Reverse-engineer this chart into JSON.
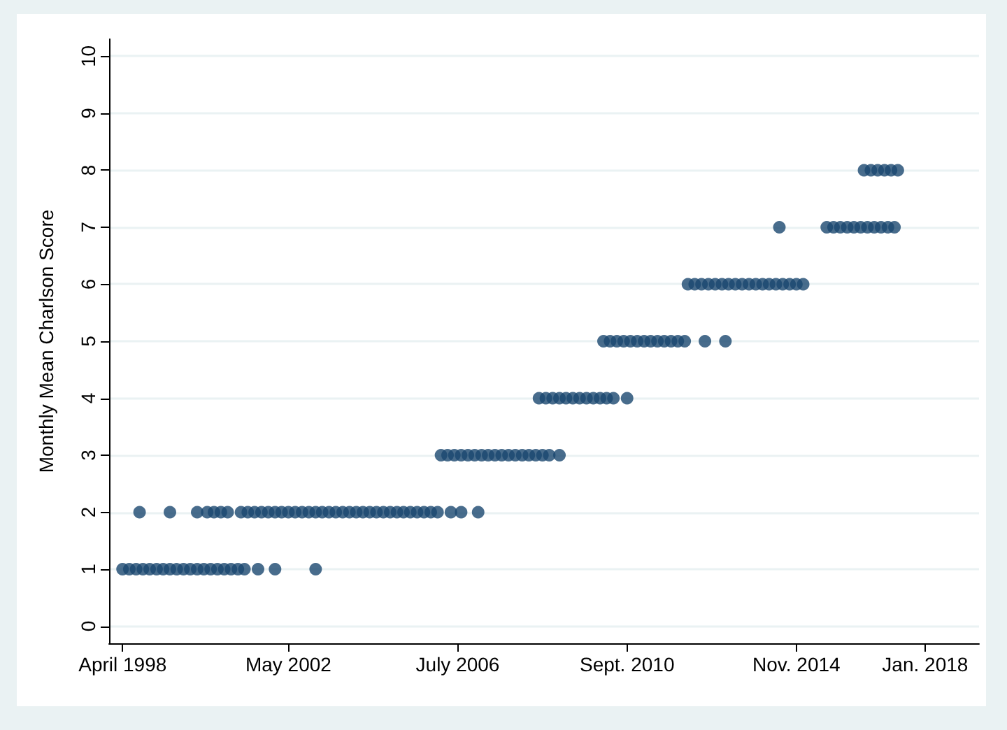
{
  "chart_data": {
    "type": "scatter",
    "ylabel": "Monthly Mean Charlson Score",
    "x": [
      "1998-04",
      "1998-06",
      "1998-08",
      "1998-10",
      "1998-12",
      "1999-02",
      "1999-04",
      "1999-06",
      "1999-08",
      "1999-10",
      "1999-12",
      "2000-02",
      "2000-04",
      "2000-06",
      "2000-08",
      "2000-10",
      "2000-12",
      "2001-02",
      "2001-04",
      "2001-08",
      "2002-01",
      "2003-01",
      "1998-09",
      "1999-06",
      "2000-02",
      "2000-05",
      "2000-07",
      "2000-09",
      "2000-11",
      "2001-03",
      "2001-05",
      "2001-07",
      "2001-09",
      "2001-11",
      "2002-01",
      "2002-03",
      "2002-05",
      "2002-07",
      "2002-09",
      "2002-11",
      "2003-01",
      "2003-03",
      "2003-05",
      "2003-07",
      "2003-09",
      "2003-11",
      "2004-01",
      "2004-03",
      "2004-05",
      "2004-07",
      "2004-09",
      "2004-11",
      "2005-01",
      "2005-03",
      "2005-05",
      "2005-07",
      "2005-09",
      "2005-11",
      "2006-01",
      "2006-05",
      "2006-08",
      "2007-01",
      "2006-02",
      "2006-04",
      "2006-06",
      "2006-08",
      "2006-10",
      "2006-12",
      "2007-02",
      "2007-04",
      "2007-06",
      "2007-08",
      "2007-10",
      "2007-12",
      "2008-02",
      "2008-04",
      "2008-06",
      "2008-08",
      "2008-10",
      "2009-01",
      "2008-07",
      "2008-09",
      "2008-11",
      "2009-01",
      "2009-03",
      "2009-05",
      "2009-07",
      "2009-09",
      "2009-11",
      "2010-01",
      "2010-03",
      "2010-05",
      "2010-09",
      "2010-02",
      "2010-04",
      "2010-06",
      "2010-08",
      "2010-10",
      "2010-12",
      "2011-02",
      "2011-04",
      "2011-06",
      "2011-08",
      "2011-10",
      "2011-12",
      "2012-02",
      "2012-08",
      "2013-02",
      "2012-03",
      "2012-05",
      "2012-07",
      "2012-09",
      "2012-11",
      "2013-01",
      "2013-03",
      "2013-05",
      "2013-07",
      "2013-09",
      "2013-11",
      "2014-01",
      "2014-03",
      "2014-05",
      "2014-07",
      "2014-09",
      "2014-11",
      "2015-01",
      "2014-06",
      "2015-08",
      "2015-10",
      "2015-12",
      "2016-02",
      "2016-04",
      "2016-06",
      "2016-08",
      "2016-10",
      "2016-12",
      "2017-02",
      "2017-04",
      "2016-07",
      "2016-09",
      "2016-11",
      "2017-01",
      "2017-03",
      "2017-05"
    ],
    "values": [
      1,
      1,
      1,
      1,
      1,
      1,
      1,
      1,
      1,
      1,
      1,
      1,
      1,
      1,
      1,
      1,
      1,
      1,
      1,
      1,
      1,
      1,
      2,
      2,
      2,
      2,
      2,
      2,
      2,
      2,
      2,
      2,
      2,
      2,
      2,
      2,
      2,
      2,
      2,
      2,
      2,
      2,
      2,
      2,
      2,
      2,
      2,
      2,
      2,
      2,
      2,
      2,
      2,
      2,
      2,
      2,
      2,
      2,
      2,
      2,
      2,
      2,
      3,
      3,
      3,
      3,
      3,
      3,
      3,
      3,
      3,
      3,
      3,
      3,
      3,
      3,
      3,
      3,
      3,
      3,
      4,
      4,
      4,
      4,
      4,
      4,
      4,
      4,
      4,
      4,
      4,
      4,
      4,
      5,
      5,
      5,
      5,
      5,
      5,
      5,
      5,
      5,
      5,
      5,
      5,
      5,
      5,
      5,
      6,
      6,
      6,
      6,
      6,
      6,
      6,
      6,
      6,
      6,
      6,
      6,
      6,
      6,
      6,
      6,
      6,
      6,
      7,
      7,
      7,
      7,
      7,
      7,
      7,
      7,
      7,
      7,
      7,
      7,
      8,
      8,
      8,
      8,
      8,
      8
    ],
    "color": "#1a476f",
    "marker": "circle",
    "xlim": [
      "1997-12",
      "2019-05"
    ],
    "xticks": [
      {
        "value": "1998-04",
        "label": "April 1998"
      },
      {
        "value": "2002-05",
        "label": "May 2002"
      },
      {
        "value": "2006-07",
        "label": "July 2006"
      },
      {
        "value": "2010-09",
        "label": "Sept. 2010"
      },
      {
        "value": "2014-11",
        "label": "Nov. 2014"
      },
      {
        "value": "2018-01",
        "label": "Jan. 2018"
      }
    ],
    "ylim": [
      -0.3,
      10.3
    ],
    "yticks": [
      0,
      1,
      2,
      3,
      4,
      5,
      6,
      7,
      8,
      9,
      10
    ],
    "grid": "y"
  }
}
